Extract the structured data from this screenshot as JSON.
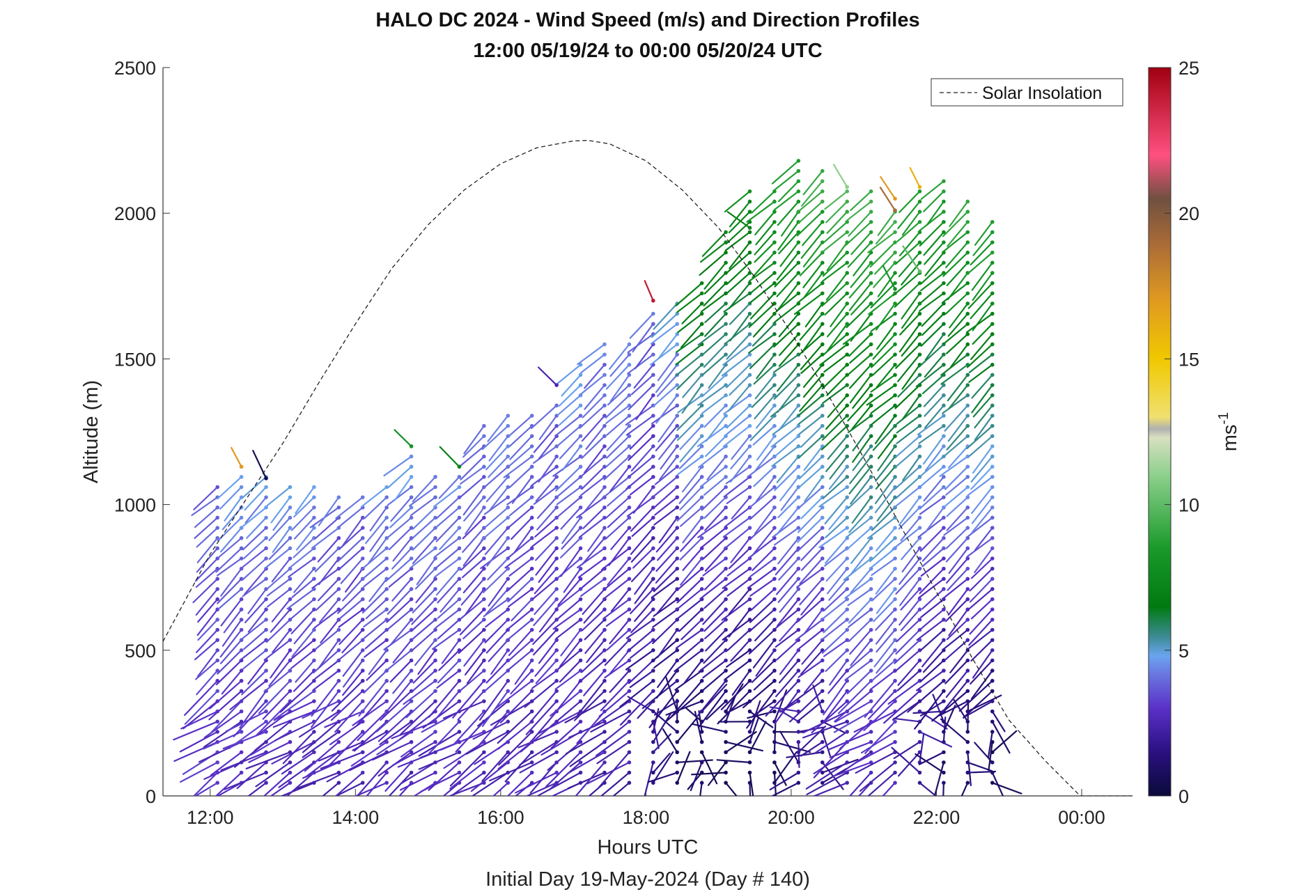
{
  "chart_data": {
    "type": "scatter",
    "subtype": "wind barb profiles (vectors colored by speed)",
    "title": "HALO DC 2024 - Wind Speed (m/s) and Direction Profiles",
    "subtitle": "12:00 05/19/24 to 00:00 05/20/24  UTC",
    "xlabel": "Hours UTC",
    "ylabel": "Altitude (m)",
    "footnote": "Initial Day 19-May-2024 (Day # 140)",
    "xlim": [
      11.35,
      24.7
    ],
    "ylim": [
      0,
      2500
    ],
    "x_ticks": [
      {
        "value": 12,
        "label": "12:00"
      },
      {
        "value": 14,
        "label": "14:00"
      },
      {
        "value": 16,
        "label": "16:00"
      },
      {
        "value": 18,
        "label": "18:00"
      },
      {
        "value": 20,
        "label": "20:00"
      },
      {
        "value": 22,
        "label": "22:00"
      },
      {
        "value": 24,
        "label": "00:00"
      }
    ],
    "y_ticks": [
      0,
      500,
      1000,
      1500,
      2000,
      2500
    ],
    "y_tick_labels": [
      "0",
      "500",
      "1000",
      "1500",
      "2000",
      "2500"
    ],
    "legend": {
      "position": "top-right",
      "entries": [
        {
          "name": "Solar Insolation",
          "style": "dashed black"
        }
      ]
    },
    "colorbar": {
      "label": "ms",
      "label_superscript": "-1",
      "range": [
        0,
        25
      ],
      "ticks": [
        0,
        5,
        10,
        15,
        20,
        25
      ],
      "colormap": [
        {
          "value": 0,
          "color": "#0a0a3a"
        },
        {
          "value": 1.5,
          "color": "#2a1080"
        },
        {
          "value": 3,
          "color": "#5a30c8"
        },
        {
          "value": 4.2,
          "color": "#6a78e0"
        },
        {
          "value": 4.8,
          "color": "#6aa4f0"
        },
        {
          "value": 5.5,
          "color": "#3a8a90"
        },
        {
          "value": 6.5,
          "color": "#007a10"
        },
        {
          "value": 8.5,
          "color": "#1a9a2a"
        },
        {
          "value": 11,
          "color": "#8cd08c"
        },
        {
          "value": 12.3,
          "color": "#d8e0c0"
        },
        {
          "value": 12.6,
          "color": "#b0b0b0"
        },
        {
          "value": 13,
          "color": "#f0e070"
        },
        {
          "value": 15,
          "color": "#f0c800"
        },
        {
          "value": 17,
          "color": "#e09a20"
        },
        {
          "value": 19,
          "color": "#a86a38"
        },
        {
          "value": 20.5,
          "color": "#705040"
        },
        {
          "value": 22,
          "color": "#ff5080"
        },
        {
          "value": 25,
          "color": "#a00010"
        }
      ]
    },
    "solar_insolation": {
      "x": [
        11.35,
        12,
        12.5,
        13,
        13.5,
        14,
        14.5,
        15,
        15.5,
        16,
        16.5,
        17,
        17.2,
        17.5,
        18,
        18.5,
        19,
        19.5,
        20,
        20.5,
        21,
        21.5,
        22,
        22.5,
        23,
        23.5,
        23.98,
        24.7
      ],
      "y": [
        530,
        830,
        1020,
        1210,
        1420,
        1620,
        1810,
        1960,
        2080,
        2170,
        2225,
        2248,
        2250,
        2238,
        2180,
        2080,
        1950,
        1780,
        1590,
        1380,
        1160,
        930,
        700,
        470,
        260,
        120,
        0,
        0
      ]
    },
    "profiles": [
      {
        "time": 12.1,
        "top": 1090,
        "dir": 225,
        "low_speed": 3,
        "up_speed": 3.8
      },
      {
        "time": 12.43,
        "top": 1100,
        "dir": 225,
        "low_speed": 2.6,
        "up_speed": 4.6
      },
      {
        "time": 12.77,
        "top": 1100,
        "dir": 225,
        "low_speed": 2.6,
        "up_speed": 4.6
      },
      {
        "time": 13.1,
        "top": 1060,
        "dir": 225,
        "low_speed": 2.6,
        "up_speed": 4.6
      },
      {
        "time": 13.43,
        "top": 1080,
        "dir": 225,
        "low_speed": 2.6,
        "up_speed": 4.5
      },
      {
        "time": 13.77,
        "top": 1030,
        "dir": 225,
        "low_speed": 2.6,
        "up_speed": 4
      },
      {
        "time": 14.1,
        "top": 1040,
        "dir": 225,
        "low_speed": 2.6,
        "up_speed": 3.9
      },
      {
        "time": 14.43,
        "top": 1080,
        "dir": 225,
        "low_speed": 2.6,
        "up_speed": 4.6
      },
      {
        "time": 14.77,
        "top": 1180,
        "dir": 225,
        "low_speed": 2.6,
        "up_speed": 4.7
      },
      {
        "time": 15.1,
        "top": 1120,
        "dir": 225,
        "low_speed": 2.6,
        "up_speed": 4.5
      },
      {
        "time": 15.43,
        "top": 1110,
        "dir": 225,
        "low_speed": 2.6,
        "up_speed": 4.5
      },
      {
        "time": 15.77,
        "top": 1300,
        "dir": 225,
        "low_speed": 2.6,
        "up_speed": 4.1
      },
      {
        "time": 16.1,
        "top": 1320,
        "dir": 225,
        "low_speed": 2.6,
        "up_speed": 4.6
      },
      {
        "time": 16.43,
        "top": 1330,
        "dir": 225,
        "low_speed": 2.6,
        "up_speed": 4.1
      },
      {
        "time": 16.77,
        "top": 1360,
        "dir": 225,
        "low_speed": 2.6,
        "up_speed": 3.9
      },
      {
        "time": 17.1,
        "top": 1500,
        "dir": 225,
        "low_speed": 2.4,
        "up_speed": 4.6
      },
      {
        "time": 17.43,
        "top": 1570,
        "dir": 225,
        "low_speed": 2.3,
        "up_speed": 4.2
      },
      {
        "time": 17.77,
        "top": 1560,
        "dir": 225,
        "low_speed": 2.3,
        "up_speed": 4.4
      },
      {
        "time": 18.1,
        "top": 1670,
        "dir": 225,
        "low_speed": 1.8,
        "up_speed": 4
      },
      {
        "time": 18.43,
        "top": 1690,
        "dir": 225,
        "low_speed": 0.9,
        "up_speed": 5
      },
      {
        "time": 18.77,
        "top": 1780,
        "dir": 225,
        "low_speed": 0.8,
        "up_speed": 7
      },
      {
        "time": 19.1,
        "top": 1950,
        "dir": 225,
        "low_speed": 0.8,
        "up_speed": 7.3
      },
      {
        "time": 19.43,
        "top": 2100,
        "dir": 225,
        "low_speed": 0.8,
        "up_speed": 7.6
      },
      {
        "time": 19.77,
        "top": 2100,
        "dir": 225,
        "low_speed": 0.8,
        "up_speed": 8.5
      },
      {
        "time": 20.1,
        "top": 2180,
        "dir": 225,
        "low_speed": 1.5,
        "up_speed": 9
      },
      {
        "time": 20.43,
        "top": 2170,
        "dir": 225,
        "low_speed": 1.5,
        "up_speed": 9.5
      },
      {
        "time": 20.77,
        "top": 2100,
        "dir": 225,
        "low_speed": 2.2,
        "up_speed": 9.5
      },
      {
        "time": 21.1,
        "top": 2080,
        "dir": 225,
        "low_speed": 2.5,
        "up_speed": 9.5
      },
      {
        "time": 21.43,
        "top": 2020,
        "dir": 225,
        "low_speed": 2.5,
        "up_speed": 9.5
      },
      {
        "time": 21.77,
        "top": 2100,
        "dir": 225,
        "low_speed": 1.8,
        "up_speed": 9
      },
      {
        "time": 22.1,
        "top": 2140,
        "dir": 225,
        "low_speed": 1,
        "up_speed": 9
      },
      {
        "time": 22.43,
        "top": 2040,
        "dir": 225,
        "low_speed": 0.9,
        "up_speed": 9
      },
      {
        "time": 22.77,
        "top": 2000,
        "dir": 225,
        "low_speed": 0.7,
        "up_speed": 9
      }
    ],
    "outliers": [
      {
        "time": 12.43,
        "alt": 1130,
        "speed": 17
      },
      {
        "time": 12.77,
        "alt": 1090,
        "speed": 0.5
      },
      {
        "time": 14.77,
        "alt": 1200,
        "speed": 8
      },
      {
        "time": 15.43,
        "alt": 1130,
        "speed": 7
      },
      {
        "time": 16.77,
        "alt": 1410,
        "speed": 2.5
      },
      {
        "time": 18.1,
        "alt": 1700,
        "speed": 24
      },
      {
        "time": 19.43,
        "alt": 1950,
        "speed": 7
      },
      {
        "time": 20.77,
        "alt": 2090,
        "speed": 11
      },
      {
        "time": 21.43,
        "alt": 2050,
        "speed": 17
      },
      {
        "time": 21.43,
        "alt": 2010,
        "speed": 19
      },
      {
        "time": 21.77,
        "alt": 2090,
        "speed": 16
      },
      {
        "time": 21.43,
        "alt": 1740,
        "speed": 8
      },
      {
        "time": 21.77,
        "alt": 1800,
        "speed": 10
      }
    ]
  }
}
